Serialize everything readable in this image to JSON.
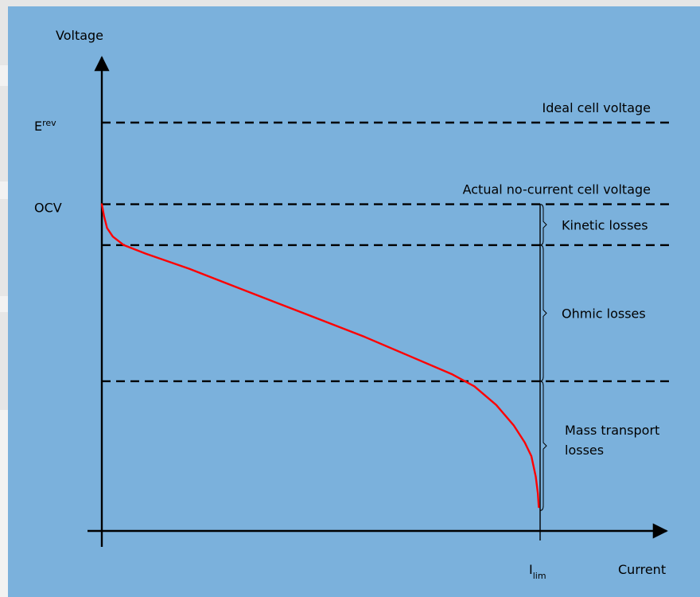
{
  "chart_data": {
    "type": "line",
    "title": "",
    "xlabel": "Current",
    "ylabel": "Voltage",
    "xlim": [
      0,
      1.32
    ],
    "ylim": [
      0,
      1.3
    ],
    "grid": false,
    "y_markers": [
      {
        "label": "E",
        "sup": "rev",
        "value": 1.2
      },
      {
        "label": "OCV",
        "value": 0.96
      }
    ],
    "x_markers": [
      {
        "label": "I",
        "sub": "lim",
        "value": 1.0
      }
    ],
    "reference_lines": [
      {
        "name": "Ideal cell voltage",
        "value": 1.2
      },
      {
        "name": "Actual no-current cell voltage",
        "value": 0.96
      },
      {
        "name": "",
        "value": 0.84
      },
      {
        "name": "",
        "value": 0.44
      }
    ],
    "loss_regions": [
      {
        "name": "Kinetic losses",
        "from": 0.84,
        "to": 0.96
      },
      {
        "name": "Ohmic losses",
        "from": 0.44,
        "to": 0.84
      },
      {
        "name": "Mass transport losses",
        "from": 0.06,
        "to": 0.44
      }
    ],
    "series": [
      {
        "color": "#ff0000",
        "points": [
          [
            0.0,
            0.96
          ],
          [
            0.005,
            0.925
          ],
          [
            0.012,
            0.89
          ],
          [
            0.025,
            0.865
          ],
          [
            0.05,
            0.84
          ],
          [
            0.1,
            0.815
          ],
          [
            0.2,
            0.77
          ],
          [
            0.3,
            0.72
          ],
          [
            0.4,
            0.67
          ],
          [
            0.5,
            0.62
          ],
          [
            0.6,
            0.57
          ],
          [
            0.7,
            0.515
          ],
          [
            0.8,
            0.46
          ],
          [
            0.85,
            0.425
          ],
          [
            0.9,
            0.37
          ],
          [
            0.94,
            0.31
          ],
          [
            0.965,
            0.26
          ],
          [
            0.98,
            0.22
          ],
          [
            0.99,
            0.16
          ],
          [
            0.995,
            0.11
          ],
          [
            0.997,
            0.07
          ]
        ]
      }
    ]
  }
}
